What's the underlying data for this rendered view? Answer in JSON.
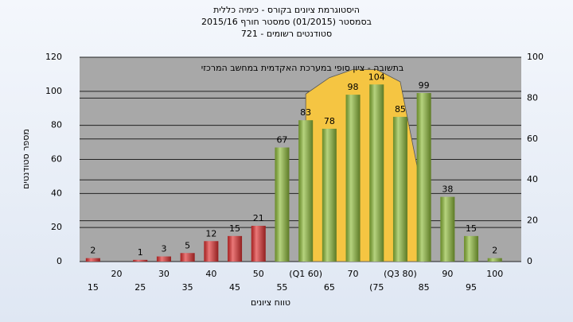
{
  "chart_data": {
    "type": "bar",
    "title": [
      "היסטוגרמת ציונים בקורס - כימיה כללית",
      "בסמסטר (01/2015) סמסטר חורף 2015/16",
      "סטודנטים רשומים - 721"
    ],
    "annotation": "בתשובה - ציון סופי במערכת האקדמית במחשב המרכזי",
    "x_label": "טווח ציונים",
    "y_label": "מספר סטודנטים",
    "categories": [
      "15",
      "20",
      "25",
      "30",
      "35",
      "40",
      "45",
      "50",
      "55",
      "(Q1 60)",
      "65",
      "70",
      "(75",
      "(Q3 80)",
      "85",
      "90",
      "95",
      "100"
    ],
    "series": [
      {
        "colors": [
          "#e03030",
          "#e03030",
          "#e03030",
          "#e03030",
          "#e03030",
          "#e03030",
          "#e03030",
          "#e03030",
          "#8fbc3a",
          "#8fbc3a",
          "#8fbc3a",
          "#8fbc3a",
          "#8fbc3a",
          "#8fbc3a",
          "#8fbc3a",
          "#8fbc3a",
          "#8fbc3a",
          "#8fbc3a"
        ],
        "values": [
          2,
          null,
          1,
          3,
          5,
          12,
          15,
          21,
          67,
          83,
          78,
          98,
          104,
          85,
          99,
          38,
          15,
          2
        ]
      },
      {
        "type": "area",
        "axis": "y2",
        "color": "#f5c542",
        "values": [
          null,
          null,
          null,
          null,
          null,
          null,
          null,
          null,
          null,
          82,
          90,
          94,
          94,
          88,
          30,
          null,
          null,
          null
        ]
      }
    ],
    "ylim": [
      0,
      120
    ],
    "yticks": [
      0,
      20,
      40,
      60,
      80,
      100,
      120
    ],
    "y2lim": [
      0,
      100
    ],
    "y2ticks": [
      0,
      20,
      40,
      60,
      80,
      100
    ],
    "grid": true
  }
}
